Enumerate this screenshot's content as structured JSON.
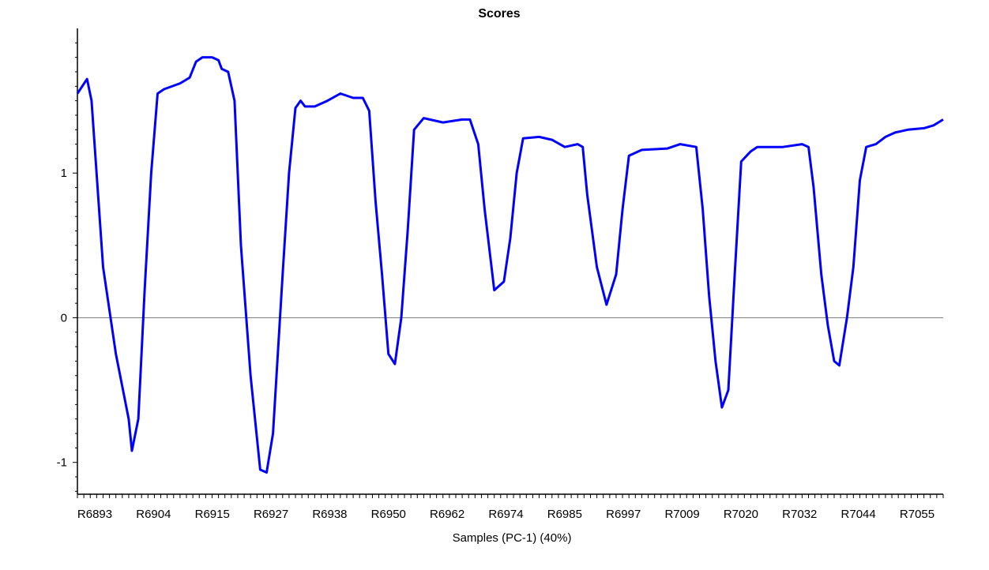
{
  "chart_data": {
    "type": "line",
    "title": "Scores",
    "xlabel": "Samples (PC-1) (40%)",
    "ylabel": "",
    "ylim": [
      -1.22,
      2.0
    ],
    "y_ticks": [
      -1,
      0,
      1
    ],
    "y_tick_labels": [
      "-1",
      "0",
      "1"
    ],
    "zero_line": true,
    "grid": false,
    "x_tick_labels": [
      "R6893",
      "R6904",
      "R6915",
      "R6927",
      "R6938",
      "R6950",
      "R6962",
      "R6974",
      "R6985",
      "R6997",
      "R7009",
      "R7020",
      "R7032",
      "R7044",
      "R7055"
    ],
    "series": [
      {
        "name": "",
        "color": "#0000ff",
        "points": [
          [
            0,
            1.55
          ],
          [
            1.5,
            1.65
          ],
          [
            2.2,
            1.5
          ],
          [
            4,
            0.35
          ],
          [
            6,
            -0.25
          ],
          [
            8,
            -0.7
          ],
          [
            8.5,
            -0.92
          ],
          [
            9.5,
            -0.7
          ],
          [
            10.5,
            0.2
          ],
          [
            11.5,
            1.0
          ],
          [
            12.5,
            1.55
          ],
          [
            13.5,
            1.58
          ],
          [
            16,
            1.62
          ],
          [
            17.5,
            1.66
          ],
          [
            18.5,
            1.77
          ],
          [
            19.5,
            1.8
          ],
          [
            21,
            1.8
          ],
          [
            22,
            1.78
          ],
          [
            22.5,
            1.72
          ],
          [
            23.5,
            1.7
          ],
          [
            24.5,
            1.5
          ],
          [
            25.5,
            0.5
          ],
          [
            27,
            -0.4
          ],
          [
            28.5,
            -1.05
          ],
          [
            29.5,
            -1.07
          ],
          [
            30.5,
            -0.8
          ],
          [
            32,
            0.3
          ],
          [
            33,
            1.0
          ],
          [
            34,
            1.45
          ],
          [
            34.8,
            1.5
          ],
          [
            35.5,
            1.46
          ],
          [
            37,
            1.46
          ],
          [
            39,
            1.5
          ],
          [
            41,
            1.55
          ],
          [
            43,
            1.52
          ],
          [
            44.5,
            1.52
          ],
          [
            45.5,
            1.43
          ],
          [
            46.5,
            0.8
          ],
          [
            47.5,
            0.3
          ],
          [
            48.5,
            -0.25
          ],
          [
            49.5,
            -0.32
          ],
          [
            50.5,
            0.0
          ],
          [
            51.5,
            0.6
          ],
          [
            52.5,
            1.3
          ],
          [
            54,
            1.38
          ],
          [
            57,
            1.35
          ],
          [
            60,
            1.37
          ],
          [
            61.2,
            1.37
          ],
          [
            62.5,
            1.2
          ],
          [
            63.5,
            0.75
          ],
          [
            65,
            0.19
          ],
          [
            66.5,
            0.25
          ],
          [
            67.5,
            0.55
          ],
          [
            68.5,
            1.0
          ],
          [
            69.5,
            1.24
          ],
          [
            72,
            1.25
          ],
          [
            74,
            1.23
          ],
          [
            76,
            1.18
          ],
          [
            78,
            1.2
          ],
          [
            78.8,
            1.18
          ],
          [
            79.5,
            0.85
          ],
          [
            81,
            0.35
          ],
          [
            82.5,
            0.09
          ],
          [
            84,
            0.3
          ],
          [
            85,
            0.75
          ],
          [
            86,
            1.12
          ],
          [
            88,
            1.16
          ],
          [
            92,
            1.17
          ],
          [
            94,
            1.2
          ],
          [
            96.5,
            1.18
          ],
          [
            97.5,
            0.75
          ],
          [
            98.5,
            0.15
          ],
          [
            99.5,
            -0.3
          ],
          [
            100.5,
            -0.62
          ],
          [
            101.5,
            -0.5
          ],
          [
            102.5,
            0.3
          ],
          [
            103.5,
            1.08
          ],
          [
            105,
            1.15
          ],
          [
            106,
            1.18
          ],
          [
            110,
            1.18
          ],
          [
            113,
            1.2
          ],
          [
            114,
            1.18
          ],
          [
            114.8,
            0.9
          ],
          [
            116,
            0.3
          ],
          [
            117,
            -0.05
          ],
          [
            118,
            -0.3
          ],
          [
            118.8,
            -0.33
          ],
          [
            120,
            0.0
          ],
          [
            121,
            0.35
          ],
          [
            122,
            0.95
          ],
          [
            123,
            1.18
          ],
          [
            124.5,
            1.2
          ],
          [
            126,
            1.25
          ],
          [
            127.5,
            1.28
          ],
          [
            129.5,
            1.3
          ],
          [
            132,
            1.31
          ],
          [
            133.5,
            1.33
          ],
          [
            135,
            1.37
          ]
        ]
      }
    ]
  }
}
